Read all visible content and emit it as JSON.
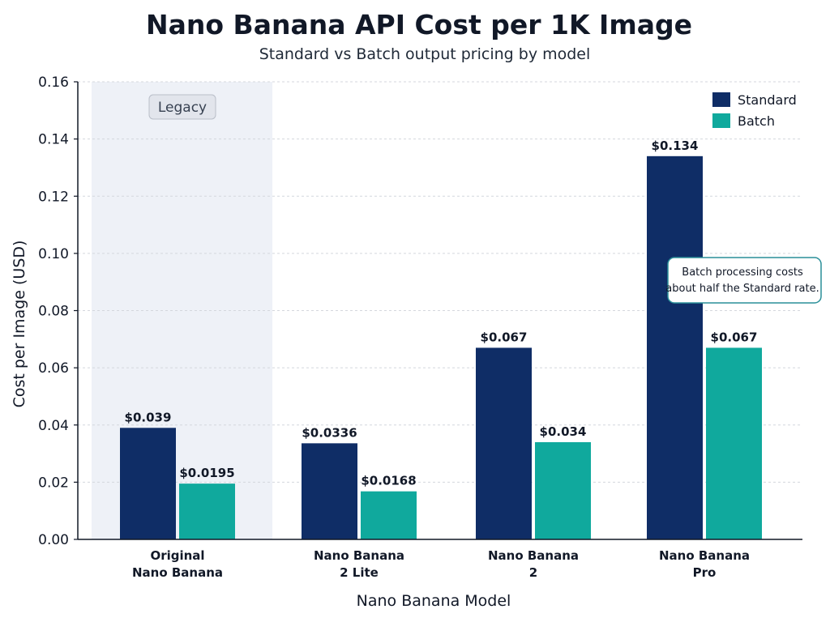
{
  "colors": {
    "standard": "#0f2d66",
    "batch": "#10a99d",
    "legacy_band": "#eef1f7",
    "grid": "#d4d7dd",
    "note_border": "#2a8f99"
  },
  "chart_data": {
    "type": "bar",
    "title": "Nano Banana API Cost per 1K Image",
    "subtitle": "Standard vs Batch output pricing by model",
    "xlabel": "Nano Banana Model",
    "ylabel": "Cost per Image (USD)",
    "ylim": [
      0,
      0.16
    ],
    "yticks": [
      "0.00",
      "0.02",
      "0.04",
      "0.06",
      "0.08",
      "0.10",
      "0.12",
      "0.14",
      "0.16"
    ],
    "grid": true,
    "legend_position": "top-right",
    "categories": [
      [
        "Original",
        "Nano Banana"
      ],
      [
        "Nano Banana",
        "2 Lite"
      ],
      [
        "Nano Banana",
        "2"
      ],
      [
        "Nano Banana",
        "Pro"
      ]
    ],
    "series": [
      {
        "name": "Standard",
        "values": [
          0.039,
          0.0336,
          0.067,
          0.134
        ],
        "labels": [
          "$0.039",
          "$0.0336",
          "$0.067",
          "$0.134"
        ]
      },
      {
        "name": "Batch",
        "values": [
          0.0195,
          0.0168,
          0.034,
          0.067
        ],
        "labels": [
          "$0.0195",
          "$0.0168",
          "$0.034",
          "$0.067"
        ]
      }
    ],
    "annotations": {
      "legacy_label": "Legacy",
      "legacy_category_index": 0,
      "note_lines": [
        "Batch processing costs",
        "about half the Standard rate."
      ]
    }
  }
}
